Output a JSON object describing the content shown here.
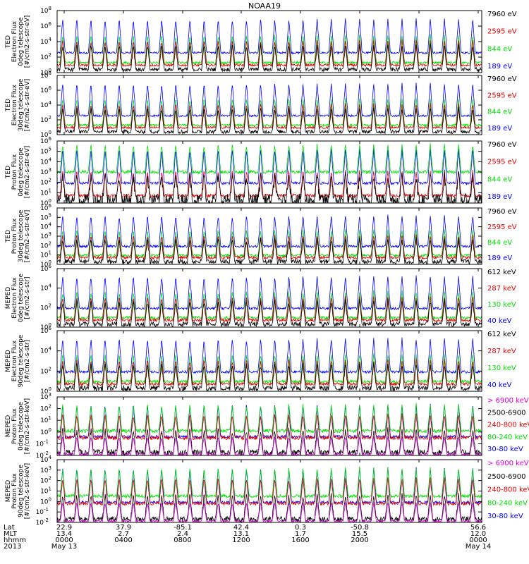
{
  "title": "NOAA19",
  "colors": {
    "black": "#000000",
    "red": "#e00000",
    "green": "#00e000",
    "blue": "#0000ff",
    "magenta": "#e000e0"
  },
  "footer": {
    "rows": [
      {
        "label": "Lat",
        "values": [
          "22.9",
          "37.9",
          "-85.1",
          "42.4",
          "0.3",
          "-50.8",
          "56.6"
        ]
      },
      {
        "label": "MLT",
        "values": [
          "13.4",
          "2.7",
          "2.4",
          "13.1",
          "1.7",
          "15.5",
          "12.0"
        ]
      },
      {
        "label": "hhmm",
        "values": [
          "0000",
          "0400",
          "0800",
          "1200",
          "1600",
          "2000",
          "0000"
        ]
      }
    ],
    "year": "2013",
    "start_date": "May 13",
    "end_date": "May 14"
  },
  "chart_data": [
    {
      "type": "line",
      "ylabel": "TED Electron Flux 0deg telescope [#/cm2-s-str-eV]",
      "ylabel_lines": [
        "TED",
        "Electron Flux",
        "0deg telescope",
        "[#/cm2-s-str-eV]"
      ],
      "y_log": true,
      "ytick_exp": [
        0,
        2,
        4,
        6,
        8
      ],
      "ylim": [
        1,
        100000000
      ],
      "x": [
        "0000",
        "0400",
        "0800",
        "1200",
        "1600",
        "2000",
        "0000"
      ],
      "series": [
        {
          "name": "7960 eV",
          "color": "black"
        },
        {
          "name": "2595 eV",
          "color": "red"
        },
        {
          "name": "844 eV",
          "color": "green"
        },
        {
          "name": "189 eV",
          "color": "blue"
        }
      ]
    },
    {
      "type": "line",
      "ylabel": "TED Electron Flux 30deg telescope [#/cm2-s-str-eV]",
      "ylabel_lines": [
        "TED",
        "Electron Flux",
        "30deg telescope",
        "[#/cm2-s-str-eV]"
      ],
      "y_log": true,
      "ytick_exp": [
        0,
        2,
        4,
        6,
        8
      ],
      "ylim": [
        1,
        100000000
      ],
      "x": [
        "0000",
        "0400",
        "0800",
        "1200",
        "1600",
        "2000",
        "0000"
      ],
      "series": [
        {
          "name": "7960 eV",
          "color": "black"
        },
        {
          "name": "2595 eV",
          "color": "red"
        },
        {
          "name": "844 eV",
          "color": "green"
        },
        {
          "name": "189 eV",
          "color": "blue"
        }
      ]
    },
    {
      "type": "line",
      "ylabel": "TED Proton Flux 0deg telescope [#/cm2-s-str-eV]",
      "ylabel_lines": [
        "TED",
        "Proton Flux",
        "0deg telescope",
        "[#/cm2-s-str-eV]"
      ],
      "y_log": true,
      "ytick_exp": [
        0,
        1,
        2,
        3,
        4,
        5,
        6
      ],
      "ylim": [
        1,
        1000000
      ],
      "x": [
        "0000",
        "0400",
        "0800",
        "1200",
        "1600",
        "2000",
        "0000"
      ],
      "series": [
        {
          "name": "7960 eV",
          "color": "black"
        },
        {
          "name": "2595 eV",
          "color": "red"
        },
        {
          "name": "844 eV",
          "color": "green"
        },
        {
          "name": "189 eV",
          "color": "blue"
        }
      ]
    },
    {
      "type": "line",
      "ylabel": "TED Proton Flux 30deg telescope [#/cm2-s-str-eV]",
      "ylabel_lines": [
        "TED",
        "Proton Flux",
        "30deg telescope",
        "[#/cm2-s-str-eV]"
      ],
      "y_log": true,
      "ytick_exp": [
        0,
        1,
        2,
        3,
        4,
        5,
        6
      ],
      "ylim": [
        1,
        1000000
      ],
      "x": [
        "0000",
        "0400",
        "0800",
        "1200",
        "1600",
        "2000",
        "0000"
      ],
      "series": [
        {
          "name": "7960 eV",
          "color": "black"
        },
        {
          "name": "2595 eV",
          "color": "red"
        },
        {
          "name": "844 eV",
          "color": "green"
        },
        {
          "name": "189 eV",
          "color": "blue"
        }
      ]
    },
    {
      "type": "line",
      "ylabel": "MEPED Electron Flux 0deg telescope [#/cm2-s-str]",
      "ylabel_lines": [
        "MEPED",
        "Electron Flux",
        "0deg telescope",
        "[#/cm2-s-str]"
      ],
      "y_log": true,
      "ytick_exp": [
        0,
        2,
        4,
        6
      ],
      "ylim": [
        1,
        1000000
      ],
      "x": [
        "0000",
        "0400",
        "0800",
        "1200",
        "1600",
        "2000",
        "0000"
      ],
      "series": [
        {
          "name": "612 keV",
          "color": "black"
        },
        {
          "name": "287 keV",
          "color": "red"
        },
        {
          "name": "130 keV",
          "color": "green"
        },
        {
          "name": "40 keV",
          "color": "blue"
        }
      ]
    },
    {
      "type": "line",
      "ylabel": "MEPED Electron Flux 90deg telescope [#/cm2-s-str]",
      "ylabel_lines": [
        "MEPED",
        "Electron Flux",
        "90deg telescope",
        "[#/cm2-s-str]"
      ],
      "y_log": true,
      "ytick_exp": [
        0,
        2,
        4,
        6
      ],
      "ylim": [
        1,
        1000000
      ],
      "x": [
        "0000",
        "0400",
        "0800",
        "1200",
        "1600",
        "2000",
        "0000"
      ],
      "series": [
        {
          "name": "612 keV",
          "color": "black"
        },
        {
          "name": "287 keV",
          "color": "red"
        },
        {
          "name": "130 keV",
          "color": "green"
        },
        {
          "name": "40 keV",
          "color": "blue"
        }
      ]
    },
    {
      "type": "line",
      "ylabel": "MEPED Proton Flux 0deg telescope [#/cm2-s-str-keV]",
      "ylabel_lines": [
        "MEPED",
        "Proton Flux",
        "0deg telescope",
        "[#/cm2-s-str-keV]"
      ],
      "y_log": true,
      "ytick_exp": [
        -2,
        -1,
        0,
        1,
        2,
        3
      ],
      "ylim": [
        0.01,
        1000
      ],
      "x": [
        "0000",
        "0400",
        "0800",
        "1200",
        "1600",
        "2000",
        "0000"
      ],
      "series": [
        {
          "name": "> 6900 keV",
          "color": "magenta"
        },
        {
          "name": "2500-6900",
          "color": "black"
        },
        {
          "name": "240-800 keV",
          "color": "red"
        },
        {
          "name": "80-240 keV",
          "color": "green"
        },
        {
          "name": "30-80 keV",
          "color": "blue"
        }
      ]
    },
    {
      "type": "line",
      "ylabel": "MEPED Proton Flux 90deg telescope [#/cm2-s-str-keV]",
      "ylabel_lines": [
        "MEPED",
        "Proton Flux",
        "90deg telescope",
        "[#/cm2-s-str-keV]"
      ],
      "y_log": true,
      "ytick_exp": [
        -2,
        -1,
        0,
        1,
        2,
        3,
        4
      ],
      "ylim": [
        0.01,
        10000
      ],
      "x": [
        "0000",
        "0400",
        "0800",
        "1200",
        "1600",
        "2000",
        "0000"
      ],
      "series": [
        {
          "name": "> 6900 keV",
          "color": "magenta"
        },
        {
          "name": "2500-6900",
          "color": "black"
        },
        {
          "name": "240-800 keV",
          "color": "red"
        },
        {
          "name": "80-240 keV",
          "color": "green"
        },
        {
          "name": "30-80 keV",
          "color": "blue"
        }
      ]
    }
  ]
}
